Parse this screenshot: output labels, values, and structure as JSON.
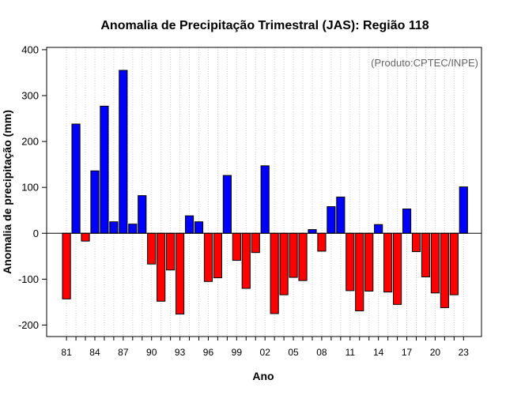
{
  "chart_data": {
    "type": "bar",
    "title": "Anomalia de Precipitação Trimestral (JAS): Região 118",
    "credit": "(Produto:CPTEC/INPE)",
    "xlabel": "Ano",
    "ylabel": "Anomalia de precipitação (mm)",
    "ylim": [
      -225,
      405
    ],
    "yticks": [
      -200,
      -100,
      0,
      100,
      200,
      300,
      400
    ],
    "x": [
      1981,
      1982,
      1983,
      1984,
      1985,
      1986,
      1987,
      1988,
      1989,
      1990,
      1991,
      1992,
      1993,
      1994,
      1995,
      1996,
      1997,
      1998,
      1999,
      2000,
      2001,
      2002,
      2003,
      2004,
      2005,
      2006,
      2007,
      2008,
      2009,
      2010,
      2011,
      2012,
      2013,
      2014,
      2015,
      2016,
      2017,
      2018,
      2019,
      2020,
      2021,
      2022,
      2023
    ],
    "values": [
      -143,
      238,
      -17,
      136,
      277,
      25,
      355,
      20,
      82,
      -67,
      -148,
      -80,
      -176,
      38,
      25,
      -105,
      -97,
      126,
      -59,
      -120,
      -42,
      147,
      -175,
      -134,
      -96,
      -103,
      8,
      -39,
      58,
      79,
      -125,
      -169,
      -126,
      19,
      -128,
      -155,
      53,
      -40,
      -95,
      -130,
      -162,
      -134,
      101
    ],
    "xticks": [
      "81",
      "84",
      "87",
      "90",
      "93",
      "96",
      "99",
      "02",
      "05",
      "08",
      "11",
      "14",
      "17",
      "20",
      "23"
    ],
    "grid": "vertical dotted lines",
    "colors": {
      "positive": "#0000ff",
      "negative": "#ff0000",
      "grid": "#cccccc"
    }
  }
}
